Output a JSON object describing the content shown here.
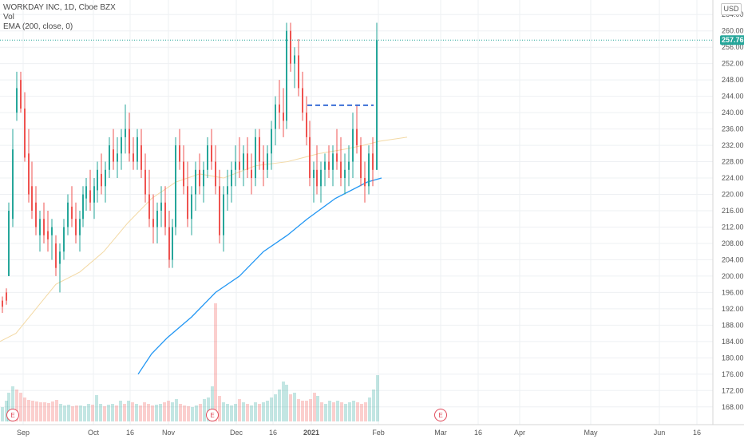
{
  "legend": {
    "symbol": "WORKDAY INC, 1D, Cboe BZX",
    "vol": "Vol",
    "ema": "EMA (200, close, 0)"
  },
  "currency": "USD",
  "last_price": "257.76",
  "colors": {
    "up": "#26a69a",
    "down": "#ef5350",
    "ema200": "#2196f3",
    "ema50": "#f3d9a4",
    "price_tag": "#26a69a",
    "dashed_line": "#3b6fd6",
    "earnings": "#e04a5a"
  },
  "earnings_marker_label": "E",
  "chart_data": {
    "type": "candlestick",
    "y_axis": {
      "side": "right",
      "range": [
        166,
        266
      ],
      "ticks": [
        168,
        172,
        176,
        180,
        184,
        188,
        192,
        196,
        200,
        204,
        208,
        212,
        216,
        220,
        224,
        228,
        232,
        236,
        240,
        244,
        248,
        252,
        256,
        260,
        264
      ],
      "tick_labels": [
        "168.00",
        "172.00",
        "176.00",
        "180.00",
        "184.00",
        "188.00",
        "192.00",
        "196.00",
        "200.00",
        "204.00",
        "208.00",
        "212.00",
        "216.00",
        "220.00",
        "224.00",
        "228.00",
        "232.00",
        "236.00",
        "240.00",
        "244.00",
        "248.00",
        "252.00",
        "256.00",
        "260.00",
        "264.00"
      ]
    },
    "x_axis": {
      "ticks": [
        {
          "label": "Sep",
          "date": "2020-09-01",
          "bold": false
        },
        {
          "label": "Oct",
          "date": "2020-10-01",
          "bold": false
        },
        {
          "label": "16",
          "date": "2020-10-16",
          "bold": false
        },
        {
          "label": "Nov",
          "date": "2020-11-02",
          "bold": false
        },
        {
          "label": "Dec",
          "date": "2020-12-01",
          "bold": false
        },
        {
          "label": "16",
          "date": "2020-12-16",
          "bold": false
        },
        {
          "label": "2021",
          "date": "2021-01-04",
          "bold": true
        },
        {
          "label": "Feb",
          "date": "2021-02-01",
          "bold": false
        },
        {
          "label": "Mar",
          "date": "2021-03-01",
          "bold": false
        },
        {
          "label": "16",
          "date": "2021-03-16",
          "bold": false
        },
        {
          "label": "Apr",
          "date": "2021-04-01",
          "bold": false
        },
        {
          "label": "May",
          "date": "2021-05-03",
          "bold": false
        },
        {
          "label": "Jun",
          "date": "2021-06-01",
          "bold": false
        },
        {
          "label": "16",
          "date": "2021-06-16",
          "bold": false
        }
      ]
    },
    "series": [
      {
        "name": "Vol",
        "kind": "volume"
      },
      {
        "name": "EMA (200, close, 0)",
        "kind": "line"
      }
    ],
    "ema200_points": [
      [
        173,
        176
      ],
      [
        190,
        181
      ],
      [
        210,
        185
      ],
      [
        240,
        190
      ],
      [
        270,
        196
      ],
      [
        300,
        200
      ],
      [
        330,
        206
      ],
      [
        360,
        210
      ],
      [
        385,
        214
      ],
      [
        420,
        219
      ],
      [
        460,
        223
      ],
      [
        478,
        224
      ]
    ],
    "ema50_points": [
      [
        0,
        184
      ],
      [
        20,
        186
      ],
      [
        45,
        192
      ],
      [
        70,
        198
      ],
      [
        100,
        201
      ],
      [
        130,
        206
      ],
      [
        160,
        213
      ],
      [
        190,
        219
      ],
      [
        220,
        223
      ],
      [
        250,
        225
      ],
      [
        280,
        224
      ],
      [
        320,
        227
      ],
      [
        360,
        228
      ],
      [
        400,
        230
      ],
      [
        430,
        231
      ],
      [
        455,
        232
      ],
      [
        475,
        233
      ],
      [
        510,
        234
      ]
    ],
    "price_level_line": {
      "from_x": 385,
      "to_x": 468,
      "value": 241.8
    },
    "last_price_value": 257.76,
    "earnings_markers_x": [
      16,
      266,
      552
    ],
    "candles": [
      [
        3,
        194,
        195,
        191,
        192.5
      ],
      [
        8,
        196,
        197,
        193,
        194
      ],
      [
        11,
        200,
        218,
        200,
        216
      ],
      [
        16,
        214,
        236,
        212,
        231
      ],
      [
        21,
        240,
        250,
        238,
        246
      ],
      [
        26,
        248,
        250,
        240,
        241
      ],
      [
        31,
        241,
        245,
        228,
        229
      ],
      [
        36,
        230,
        236,
        218,
        220
      ],
      [
        40,
        222,
        228,
        214,
        216
      ],
      [
        45,
        218,
        222,
        210,
        212
      ],
      [
        50,
        210,
        216,
        206,
        214
      ],
      [
        55,
        214,
        218,
        208,
        210
      ],
      [
        60,
        211,
        216,
        206,
        209
      ],
      [
        65,
        210,
        214,
        204,
        212
      ],
      [
        70,
        208,
        210,
        200,
        202
      ],
      [
        75,
        203,
        208,
        196,
        206
      ],
      [
        80,
        206,
        214,
        204,
        212
      ],
      [
        85,
        212,
        220,
        210,
        218
      ],
      [
        90,
        217,
        222,
        212,
        214
      ],
      [
        95,
        214,
        218,
        208,
        210
      ],
      [
        100,
        210,
        216,
        206,
        214
      ],
      [
        104,
        214,
        222,
        212,
        220
      ],
      [
        108,
        219,
        224,
        216,
        222
      ],
      [
        113,
        221,
        226,
        216,
        218
      ],
      [
        118,
        218,
        224,
        214,
        222
      ],
      [
        122,
        221,
        228,
        218,
        226
      ],
      [
        127,
        225,
        230,
        220,
        222
      ],
      [
        132,
        222,
        228,
        218,
        226
      ],
      [
        137,
        226,
        234,
        224,
        232
      ],
      [
        142,
        231,
        236,
        226,
        228
      ],
      [
        147,
        228,
        234,
        224,
        230
      ],
      [
        152,
        230,
        236,
        226,
        234
      ],
      [
        157,
        234,
        242,
        230,
        236
      ],
      [
        162,
        236,
        240,
        228,
        230
      ],
      [
        167,
        230,
        234,
        226,
        228
      ],
      [
        172,
        228,
        236,
        226,
        234
      ],
      [
        177,
        232,
        236,
        224,
        226
      ],
      [
        182,
        226,
        230,
        218,
        220
      ],
      [
        187,
        220,
        226,
        212,
        214
      ],
      [
        192,
        214,
        220,
        208,
        212
      ],
      [
        197,
        212,
        218,
        208,
        216
      ],
      [
        202,
        216,
        222,
        212,
        218
      ],
      [
        207,
        218,
        222,
        210,
        212
      ],
      [
        212,
        212,
        216,
        202,
        204
      ],
      [
        216,
        204,
        214,
        202,
        212
      ],
      [
        220,
        212,
        234,
        210,
        232
      ],
      [
        225,
        232,
        236,
        226,
        228
      ],
      [
        230,
        228,
        232,
        220,
        222
      ],
      [
        235,
        222,
        228,
        212,
        214
      ],
      [
        240,
        214,
        222,
        210,
        220
      ],
      [
        245,
        220,
        228,
        216,
        226
      ],
      [
        250,
        226,
        230,
        220,
        222
      ],
      [
        255,
        222,
        228,
        218,
        226
      ],
      [
        260,
        226,
        234,
        224,
        232
      ],
      [
        265,
        232,
        236,
        226,
        228
      ],
      [
        270,
        228,
        232,
        220,
        222
      ],
      [
        275,
        222,
        226,
        208,
        210
      ],
      [
        280,
        210,
        222,
        206,
        220
      ],
      [
        285,
        220,
        226,
        216,
        222
      ],
      [
        290,
        222,
        228,
        218,
        226
      ],
      [
        295,
        226,
        232,
        222,
        228
      ],
      [
        300,
        228,
        234,
        224,
        226
      ],
      [
        305,
        226,
        232,
        222,
        230
      ],
      [
        310,
        230,
        234,
        224,
        226
      ],
      [
        315,
        226,
        230,
        220,
        224
      ],
      [
        320,
        224,
        236,
        222,
        234
      ],
      [
        325,
        234,
        236,
        226,
        228
      ],
      [
        330,
        228,
        232,
        222,
        226
      ],
      [
        335,
        226,
        232,
        224,
        230
      ],
      [
        340,
        230,
        238,
        226,
        236
      ],
      [
        345,
        236,
        244,
        232,
        242
      ],
      [
        350,
        242,
        248,
        236,
        240
      ],
      [
        355,
        240,
        246,
        234,
        238
      ],
      [
        359,
        238,
        262,
        236,
        260
      ],
      [
        364,
        260,
        262,
        250,
        252
      ],
      [
        369,
        252,
        256,
        246,
        254
      ],
      [
        374,
        254,
        258,
        244,
        246
      ],
      [
        379,
        246,
        250,
        238,
        240
      ],
      [
        384,
        240,
        244,
        232,
        234
      ],
      [
        388,
        234,
        238,
        222,
        224
      ],
      [
        393,
        224,
        228,
        218,
        226
      ],
      [
        397,
        226,
        232,
        220,
        222
      ],
      [
        402,
        222,
        228,
        218,
        226
      ],
      [
        407,
        226,
        230,
        222,
        228
      ],
      [
        412,
        228,
        232,
        224,
        226
      ],
      [
        417,
        226,
        232,
        222,
        230
      ],
      [
        422,
        230,
        236,
        226,
        228
      ],
      [
        427,
        228,
        234,
        222,
        224
      ],
      [
        432,
        224,
        230,
        220,
        226
      ],
      [
        437,
        226,
        232,
        222,
        228
      ],
      [
        442,
        228,
        240,
        224,
        236
      ],
      [
        447,
        236,
        242,
        230,
        232
      ],
      [
        452,
        232,
        234,
        222,
        224
      ],
      [
        457,
        224,
        228,
        218,
        222
      ],
      [
        462,
        222,
        232,
        220,
        230
      ],
      [
        467,
        230,
        234,
        222,
        226
      ],
      [
        472,
        226,
        262,
        226,
        257.76
      ]
    ],
    "volumes": [
      [
        3,
        18,
        1
      ],
      [
        8,
        26,
        1
      ],
      [
        11,
        36,
        1
      ],
      [
        16,
        44,
        1
      ],
      [
        21,
        40,
        0
      ],
      [
        26,
        36,
        0
      ],
      [
        31,
        30,
        0
      ],
      [
        36,
        27,
        0
      ],
      [
        41,
        26,
        0
      ],
      [
        46,
        25,
        0
      ],
      [
        51,
        24,
        0
      ],
      [
        56,
        24,
        0
      ],
      [
        61,
        23,
        0
      ],
      [
        66,
        25,
        0
      ],
      [
        71,
        27,
        0
      ],
      [
        76,
        22,
        1
      ],
      [
        81,
        20,
        1
      ],
      [
        86,
        21,
        1
      ],
      [
        91,
        19,
        0
      ],
      [
        96,
        20,
        0
      ],
      [
        101,
        20,
        1
      ],
      [
        106,
        19,
        1
      ],
      [
        111,
        22,
        1
      ],
      [
        116,
        21,
        0
      ],
      [
        121,
        33,
        1
      ],
      [
        126,
        22,
        1
      ],
      [
        131,
        19,
        0
      ],
      [
        136,
        21,
        1
      ],
      [
        141,
        22,
        1
      ],
      [
        146,
        20,
        0
      ],
      [
        151,
        26,
        1
      ],
      [
        156,
        22,
        0
      ],
      [
        161,
        26,
        1
      ],
      [
        166,
        24,
        0
      ],
      [
        171,
        22,
        1
      ],
      [
        176,
        20,
        0
      ],
      [
        181,
        24,
        0
      ],
      [
        186,
        22,
        0
      ],
      [
        191,
        20,
        0
      ],
      [
        196,
        21,
        1
      ],
      [
        201,
        22,
        1
      ],
      [
        206,
        24,
        0
      ],
      [
        211,
        26,
        0
      ],
      [
        216,
        24,
        1
      ],
      [
        221,
        28,
        1
      ],
      [
        226,
        22,
        0
      ],
      [
        231,
        20,
        0
      ],
      [
        236,
        19,
        0
      ],
      [
        241,
        18,
        1
      ],
      [
        246,
        20,
        1
      ],
      [
        251,
        22,
        0
      ],
      [
        256,
        28,
        1
      ],
      [
        261,
        30,
        1
      ],
      [
        266,
        44,
        1
      ],
      [
        270,
        148,
        0
      ],
      [
        275,
        32,
        0
      ],
      [
        280,
        24,
        1
      ],
      [
        285,
        22,
        1
      ],
      [
        290,
        20,
        1
      ],
      [
        295,
        22,
        1
      ],
      [
        300,
        28,
        0
      ],
      [
        305,
        24,
        1
      ],
      [
        310,
        22,
        0
      ],
      [
        315,
        20,
        1
      ],
      [
        320,
        24,
        1
      ],
      [
        325,
        22,
        0
      ],
      [
        330,
        24,
        1
      ],
      [
        335,
        26,
        1
      ],
      [
        340,
        30,
        1
      ],
      [
        345,
        34,
        1
      ],
      [
        350,
        40,
        1
      ],
      [
        355,
        50,
        1
      ],
      [
        359,
        46,
        1
      ],
      [
        364,
        34,
        0
      ],
      [
        369,
        36,
        1
      ],
      [
        374,
        28,
        0
      ],
      [
        379,
        26,
        0
      ],
      [
        384,
        26,
        0
      ],
      [
        389,
        28,
        0
      ],
      [
        394,
        36,
        0
      ],
      [
        398,
        32,
        1
      ],
      [
        403,
        24,
        0
      ],
      [
        408,
        22,
        1
      ],
      [
        413,
        26,
        1
      ],
      [
        418,
        24,
        0
      ],
      [
        423,
        26,
        1
      ],
      [
        428,
        24,
        0
      ],
      [
        433,
        22,
        1
      ],
      [
        438,
        24,
        1
      ],
      [
        443,
        26,
        1
      ],
      [
        448,
        24,
        0
      ],
      [
        453,
        22,
        0
      ],
      [
        458,
        24,
        0
      ],
      [
        463,
        30,
        1
      ],
      [
        468,
        40,
        1
      ],
      [
        473,
        58,
        1
      ]
    ]
  }
}
